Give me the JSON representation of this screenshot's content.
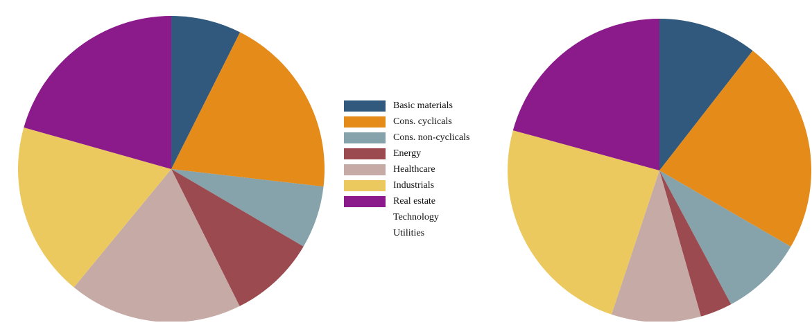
{
  "chart_data": [
    {
      "type": "pie",
      "categories": [
        "Basic materials",
        "Cons. cyclicals",
        "Cons. non-cyclicals",
        "Energy",
        "Healthcare",
        "Industrials",
        "Real estate",
        "Technology",
        "Utilities"
      ],
      "colors": [
        "#31597e",
        "#e58b1a",
        "#86a2aa",
        "#9b4a4f",
        "#c6aaa6",
        "#ecc95e",
        "#8b1a8b",
        null,
        null
      ],
      "values": [
        7.4,
        19.4,
        6.6,
        9.2,
        18.3,
        18.4,
        20.6,
        0,
        0
      ]
    },
    {
      "type": "pie",
      "values": [
        10.5,
        22.8,
        8.8,
        3.4,
        9.5,
        24.1,
        20.7,
        0,
        0
      ]
    }
  ]
}
